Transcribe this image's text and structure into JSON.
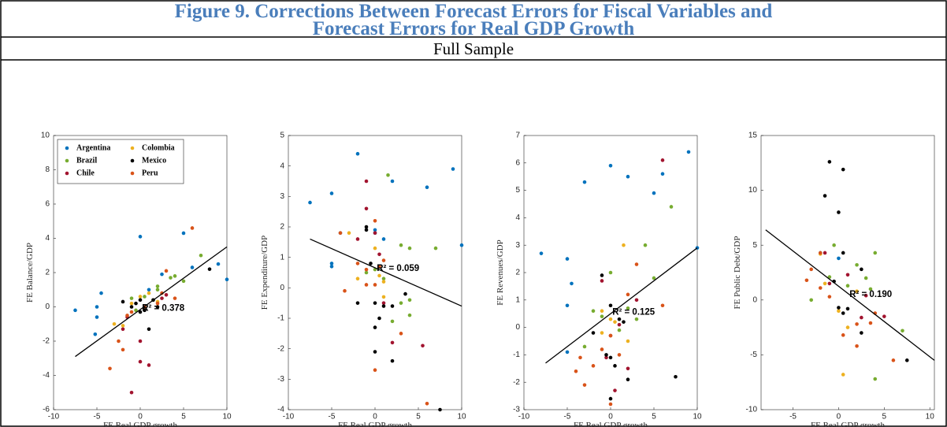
{
  "header": {
    "title": [
      "Figure 9. Corrections Between Forecast Errors for Fiscal Variables and",
      "Forecast Errors for Real GDP Growth"
    ],
    "subtitle": "Full Sample"
  },
  "chart_data": [
    {
      "type": "scatter",
      "xlabel": "FE Real GDP growth",
      "ylabel": "FE Balance/GDP",
      "xlim": [
        -10,
        10
      ],
      "ylim": [
        -6,
        10
      ],
      "xticks": [
        -10,
        -5,
        0,
        5,
        10
      ],
      "yticks": [
        -6,
        -4,
        -2,
        0,
        2,
        4,
        6,
        8,
        10
      ],
      "legend": "upper left",
      "series": [
        {
          "name": "Argentina",
          "color": "#0072BD",
          "x": [
            -7.5,
            -5,
            -5,
            -4.5,
            -5.2,
            0,
            5,
            9,
            10,
            1,
            2.5,
            6
          ],
          "values": [
            -0.2,
            0,
            -0.6,
            0.8,
            -1.6,
            4.1,
            4.3,
            2.5,
            1.6,
            1,
            1.9,
            2.3
          ]
        },
        {
          "name": "Brazil",
          "color": "#77AC30",
          "x": [
            -1,
            0.5,
            2,
            3.5,
            4,
            5,
            7,
            -0.5,
            1.5,
            2
          ],
          "values": [
            0.5,
            0.6,
            1.2,
            1.7,
            1.8,
            1.5,
            3,
            -0.2,
            0.4,
            1
          ]
        },
        {
          "name": "Chile",
          "color": "#A2142F",
          "x": [
            -1,
            0,
            -2,
            1,
            0,
            3,
            -1.5,
            2.5
          ],
          "values": [
            -5,
            -2,
            -1.3,
            -3.4,
            -3.2,
            0.7,
            -0.6,
            0.5
          ]
        },
        {
          "name": "Colombia",
          "color": "#EDB120",
          "x": [
            -3,
            -2,
            0,
            1,
            -1,
            2
          ],
          "values": [
            -1,
            -1.1,
            0.6,
            0.8,
            0.2,
            0.3
          ]
        },
        {
          "name": "Mexico",
          "color": "#000000",
          "x": [
            -2,
            -1,
            0,
            0,
            1,
            2,
            1.5,
            8,
            0.5,
            -0.5
          ],
          "values": [
            0.3,
            0,
            0.4,
            -0.3,
            -1.3,
            0,
            0.4,
            2.2,
            -0.2,
            0.2
          ]
        },
        {
          "name": "Peru",
          "color": "#D95319",
          "x": [
            -3.5,
            -2,
            -1.5,
            -2.5,
            0.5,
            2,
            3,
            4,
            6,
            2.5,
            -1
          ],
          "values": [
            -3.6,
            -2.5,
            -0.5,
            -2,
            0,
            0.2,
            2.1,
            0.5,
            4.6,
            0.8,
            -0.3
          ]
        }
      ],
      "fit": {
        "color": "#000000",
        "x": [
          -7.5,
          10
        ],
        "values": [
          -2.9,
          3.5
        ]
      },
      "annotation": "R² = 0.378"
    },
    {
      "type": "scatter",
      "xlabel": "FE Real GDP growth",
      "ylabel": "FE Expenditure/GDP",
      "xlim": [
        -10,
        10
      ],
      "ylim": [
        -4,
        5
      ],
      "xticks": [
        -10,
        -5,
        0,
        5,
        10
      ],
      "yticks": [
        -4,
        -3,
        -2,
        -1,
        0,
        1,
        2,
        3,
        4,
        5
      ],
      "series": [
        {
          "color": "#0072BD",
          "x": [
            -7.5,
            -5,
            -5,
            -5,
            -2,
            2,
            6,
            9,
            10,
            0,
            0,
            1,
            -4
          ],
          "values": [
            2.8,
            3.1,
            0.7,
            0.8,
            4.4,
            3.5,
            3.3,
            3.9,
            1.4,
            1.8,
            1.9,
            1.6,
            1.8
          ]
        },
        {
          "color": "#77AC30",
          "x": [
            1.5,
            3,
            4,
            7,
            -1,
            0,
            3,
            4,
            4,
            2,
            1
          ],
          "values": [
            3.7,
            1.4,
            1.3,
            1.3,
            0.5,
            0.6,
            -0.5,
            -0.4,
            -0.9,
            -1.1,
            0.3
          ]
        },
        {
          "color": "#A2142F",
          "x": [
            -1,
            -1,
            0,
            0.5,
            2,
            5.5,
            -2,
            1
          ],
          "values": [
            3.5,
            2.6,
            1.8,
            1.1,
            -1.8,
            -1.9,
            1.6,
            -0.5
          ]
        },
        {
          "color": "#EDB120",
          "x": [
            -3,
            0.5,
            1,
            -2,
            0,
            1
          ],
          "values": [
            1.8,
            0.4,
            -0.3,
            0.3,
            1.3,
            0.2
          ]
        },
        {
          "color": "#000000",
          "x": [
            -2,
            -1,
            -1,
            0,
            0,
            0.5,
            1,
            2,
            2,
            0,
            7.5,
            -0.5,
            3.5
          ],
          "values": [
            -0.5,
            2,
            1.9,
            -0.5,
            -1.3,
            -1,
            -0.6,
            -0.6,
            -2.4,
            -2.1,
            -4,
            0.8,
            -0.2
          ]
        },
        {
          "color": "#D95319",
          "x": [
            -4,
            -3.5,
            -1,
            -1,
            0,
            0,
            0,
            0.5,
            3,
            6,
            -2,
            1
          ],
          "values": [
            1.8,
            -0.1,
            0.6,
            0.1,
            0.1,
            2.2,
            -2.7,
            0.7,
            -1.5,
            -3.8,
            0.8,
            0.9
          ]
        }
      ],
      "fit": {
        "color": "#000000",
        "x": [
          -7.5,
          10
        ],
        "values": [
          1.6,
          -0.6
        ]
      },
      "annotation": "R² = 0.059"
    },
    {
      "type": "scatter",
      "xlabel": "FE Real GDP growth",
      "ylabel": "FE Revenues/GDP",
      "xlim": [
        -10,
        10
      ],
      "ylim": [
        -3,
        7
      ],
      "xticks": [
        -10,
        -5,
        0,
        5,
        10
      ],
      "yticks": [
        -3,
        -2,
        -1,
        0,
        1,
        2,
        3,
        4,
        5,
        6,
        7
      ],
      "series": [
        {
          "color": "#0072BD",
          "x": [
            -8,
            -5,
            -3,
            0,
            2,
            5,
            6,
            9,
            10,
            -4.5,
            -5,
            -5
          ],
          "values": [
            2.7,
            2.5,
            5.3,
            5.9,
            5.5,
            4.9,
            5.6,
            6.4,
            2.9,
            1.6,
            0.8,
            -0.9
          ]
        },
        {
          "color": "#77AC30",
          "x": [
            -3,
            -1,
            0,
            2,
            4,
            5,
            7,
            3,
            1,
            -2
          ],
          "values": [
            -0.7,
            0.4,
            2,
            0.7,
            3,
            1.8,
            4.4,
            0.3,
            -0.1,
            0.6
          ]
        },
        {
          "color": "#A2142F",
          "x": [
            -1,
            0,
            0.5,
            2,
            3,
            6,
            1,
            -0.5
          ],
          "values": [
            1.7,
            -0.3,
            -2.3,
            -1.5,
            1,
            6.1,
            0.1,
            -1.1
          ]
        },
        {
          "color": "#EDB120",
          "x": [
            -1,
            0,
            1.5,
            2,
            -1,
            0.5
          ],
          "values": [
            0.6,
            0.3,
            3,
            -0.5,
            -0.2,
            0.2
          ]
        },
        {
          "color": "#000000",
          "x": [
            -2,
            -1,
            0,
            0,
            0,
            1,
            1.5,
            2,
            7.5,
            0.5,
            -0.5
          ],
          "values": [
            -0.2,
            1.9,
            0.8,
            -1.1,
            -2.6,
            0.3,
            0.2,
            -1.9,
            -1.8,
            -1.4,
            -1
          ]
        },
        {
          "color": "#D95319",
          "x": [
            -4,
            -3,
            -2,
            -1,
            0,
            0,
            2,
            3,
            6,
            -3.5,
            1
          ],
          "values": [
            -1.6,
            -2.1,
            -1.4,
            -0.8,
            -2.8,
            -0.3,
            1.2,
            2.3,
            0.8,
            -1.1,
            -1
          ]
        }
      ],
      "fit": {
        "color": "#000000",
        "x": [
          -7.5,
          10
        ],
        "values": [
          -1.3,
          2.9
        ]
      },
      "annotation": "R² = 0.125"
    },
    {
      "type": "scatter",
      "xlabel": "FE Real GDP growth",
      "ylabel": "FE Public Debt/GDP",
      "xlim": [
        -8.5,
        10.5
      ],
      "ylim": [
        -10,
        15
      ],
      "xticks": [
        -5,
        0,
        5,
        10
      ],
      "yticks": [
        -10,
        -5,
        0,
        5,
        10,
        15
      ],
      "series": [
        {
          "color": "#0072BD",
          "x": [
            -2,
            0
          ],
          "values": [
            4.3,
            3.8
          ]
        },
        {
          "color": "#77AC30",
          "x": [
            -0.5,
            2,
            3,
            4,
            4,
            7,
            -1,
            3.5,
            1,
            -3
          ],
          "values": [
            5,
            3.2,
            2,
            4.3,
            -7.2,
            -2.8,
            2.1,
            1,
            1.3,
            0
          ]
        },
        {
          "color": "#A2142F",
          "x": [
            -1.5,
            1,
            3,
            5,
            2.5,
            -1
          ],
          "values": [
            4.3,
            2.3,
            0.4,
            -1.5,
            -1.6,
            1.5
          ]
        },
        {
          "color": "#EDB120",
          "x": [
            -2,
            0,
            0.5,
            1,
            -1.5,
            2
          ],
          "values": [
            4.2,
            -1,
            -6.8,
            -2.5,
            1.5,
            0.8
          ]
        },
        {
          "color": "#000000",
          "x": [
            -1,
            -1.5,
            0.5,
            0,
            0.5,
            2.5,
            0,
            0.5,
            2.5,
            7.5,
            -0.5,
            1
          ],
          "values": [
            12.6,
            9.5,
            11.9,
            8,
            4.3,
            2.8,
            -0.7,
            -1.2,
            -3,
            -5.5,
            1.7,
            -0.8
          ]
        },
        {
          "color": "#D95319",
          "x": [
            -3.5,
            -2,
            -2,
            -1,
            0.5,
            2,
            3.5,
            6,
            4,
            -3,
            2
          ],
          "values": [
            1.8,
            4.3,
            1.1,
            0.3,
            -3.2,
            -2.2,
            -2.1,
            -5.5,
            -1.2,
            2.8,
            -4.2
          ]
        }
      ],
      "fit": {
        "color": "#000000",
        "x": [
          -8,
          10.5
        ],
        "values": [
          6.4,
          -5.5
        ]
      },
      "annotation": "R² = 0.190"
    }
  ]
}
